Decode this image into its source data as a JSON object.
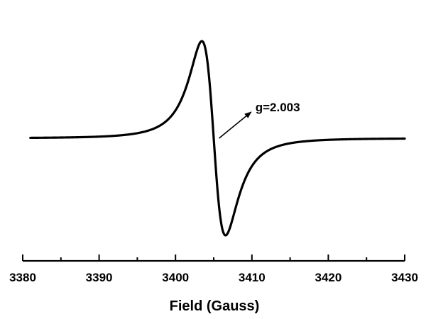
{
  "chart_data": {
    "type": "line",
    "title": "",
    "xlabel": "Field (Gauss)",
    "ylabel": "",
    "xlim": [
      3380,
      3430
    ],
    "x_ticks": [
      3380,
      3390,
      3400,
      3410,
      3420,
      3430
    ],
    "x_tick_labels": [
      "3380",
      "3390",
      "3400",
      "3410",
      "3420",
      "3430"
    ],
    "y_axis_visible": false,
    "grid": false,
    "series": [
      {
        "color": "#000000",
        "lineshape": "first-derivative Lorentzian (EPR)",
        "center": 3405.0,
        "peak_to_peak_width": 3.1,
        "x": [
          3381,
          3385,
          3390,
          3395,
          3398,
          3400,
          3401,
          3402,
          3402.8,
          3403.5,
          3404,
          3404.5,
          3405,
          3405.5,
          3406,
          3406.5,
          3407,
          3407.5,
          3408,
          3409,
          3410,
          3412,
          3415,
          3420,
          3425,
          3430
        ],
        "y": [
          0.03,
          0.05,
          0.08,
          0.17,
          0.3,
          0.46,
          0.6,
          0.79,
          0.94,
          0.98,
          0.75,
          0.38,
          0.0,
          -0.43,
          -0.85,
          -1.0,
          -0.92,
          -0.75,
          -0.58,
          -0.36,
          -0.24,
          -0.13,
          -0.07,
          -0.03,
          -0.02,
          -0.01
        ]
      }
    ],
    "annotations": [
      {
        "text": "g=2.003",
        "arrow": true,
        "arrow_from": [
          3405.7,
          0.0
        ],
        "arrow_to": [
          3409.9,
          0.27
        ]
      }
    ]
  }
}
